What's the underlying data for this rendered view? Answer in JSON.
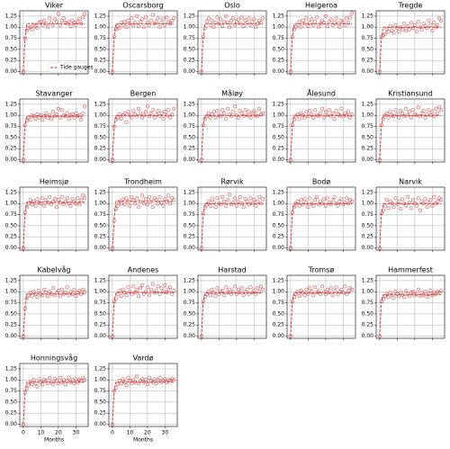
{
  "chart_data": {
    "type": "small-multiples-scatter",
    "color": "#d62728",
    "series_name": "Tide gauges",
    "xlabel": "Months",
    "x": [
      0,
      1,
      2,
      3,
      4,
      5,
      6,
      7,
      8,
      9,
      10,
      11,
      12,
      13,
      14,
      15,
      16,
      17,
      18,
      19,
      20,
      21,
      22,
      23,
      24,
      25,
      26,
      27,
      28,
      29,
      30,
      31,
      32,
      33,
      34,
      35
    ],
    "line_x": [
      0,
      1,
      2,
      35
    ],
    "xlim": [
      -2,
      37
    ],
    "ylim": [
      -0.05,
      1.37
    ],
    "xticks": [
      0,
      10,
      20,
      30
    ],
    "yticks": [
      {
        "value": 0,
        "label": "0.00"
      },
      {
        "value": 0.25,
        "label": "0.25"
      },
      {
        "value": 0.5,
        "label": "0.50"
      },
      {
        "value": 0.75,
        "label": "0.75"
      },
      {
        "value": 1,
        "label": "1.00"
      },
      {
        "value": 1.25,
        "label": "1.25"
      }
    ],
    "grid": true,
    "panels": [
      {
        "title": "Viker",
        "legend": true,
        "legend_loc": "lower right",
        "line": [
          0,
          0.75,
          1.08,
          1.08
        ],
        "values": [
          0,
          0.75,
          0.92,
          0.98,
          1.0,
          0.95,
          1.05,
          1.02,
          0.98,
          1.1,
          1.12,
          1.05,
          1.15,
          1.08,
          1.0,
          1.2,
          1.1,
          1.05,
          1.18,
          1.12,
          1.3,
          1.05,
          1.15,
          1.2,
          1.1,
          1.08,
          1.12,
          1.02,
          1.15,
          1.1,
          1.05,
          1.12,
          1.18,
          1.08,
          1.22,
          1.3
        ]
      },
      {
        "title": "Oscarsborg",
        "line": [
          0,
          0.78,
          1.08,
          1.08
        ],
        "values": [
          0,
          0.78,
          0.95,
          1.02,
          0.98,
          1.1,
          1.05,
          1.12,
          1.0,
          1.15,
          1.08,
          1.2,
          1.05,
          1.1,
          1.25,
          1.02,
          1.12,
          1.18,
          1.0,
          1.22,
          1.1,
          1.05,
          1.15,
          1.28,
          1.08,
          1.12,
          1.2,
          1.0,
          1.1,
          1.18,
          1.05,
          1.22,
          1.12,
          1.08,
          1.15,
          1.2
        ]
      },
      {
        "title": "Oslo",
        "line": [
          0,
          0.78,
          1.08,
          1.08
        ],
        "values": [
          0,
          0.78,
          0.98,
          1.12,
          1.2,
          1.05,
          1.15,
          1.0,
          1.1,
          1.22,
          1.08,
          1.18,
          1.02,
          1.12,
          1.25,
          1.1,
          1.0,
          1.15,
          1.2,
          1.05,
          1.12,
          1.18,
          1.08,
          1.22,
          1.02,
          1.15,
          1.1,
          1.2,
          1.05,
          1.12,
          1.18,
          1.0,
          1.08,
          1.15,
          1.1,
          1.2
        ]
      },
      {
        "title": "Helgeroa",
        "line": [
          0,
          0.78,
          1.08,
          1.08
        ],
        "values": [
          0,
          0.78,
          0.95,
          1.0,
          1.05,
          1.12,
          1.0,
          1.15,
          1.08,
          1.2,
          1.02,
          1.1,
          1.18,
          1.05,
          1.12,
          1.22,
          1.0,
          1.08,
          1.15,
          1.1,
          1.25,
          1.02,
          1.12,
          1.18,
          1.05,
          1.1,
          1.2,
          1.08,
          1.0,
          1.15,
          1.12,
          1.05,
          1.2,
          1.1,
          1.22,
          1.32
        ]
      },
      {
        "title": "Tregde",
        "line": [
          0,
          0.78,
          1.0,
          1.0
        ],
        "values": [
          0,
          0.78,
          0.82,
          0.85,
          0.95,
          0.9,
          1.02,
          0.92,
          0.88,
          1.05,
          0.98,
          0.9,
          1.0,
          0.95,
          1.08,
          0.92,
          1.02,
          0.95,
          1.1,
          0.98,
          1.05,
          0.9,
          1.12,
          1.0,
          0.95,
          1.08,
          1.02,
          0.98,
          1.15,
          1.05,
          0.92,
          1.1,
          1.0,
          1.05,
          1.2,
          1.15
        ]
      },
      {
        "title": "Stavanger",
        "line": [
          0,
          0.78,
          0.98,
          0.98
        ],
        "values": [
          0,
          0.78,
          0.88,
          0.95,
          0.9,
          1.0,
          0.98,
          0.92,
          1.02,
          0.95,
          1.0,
          0.9,
          0.98,
          1.05,
          0.95,
          1.0,
          0.92,
          1.08,
          0.98,
          1.02,
          1.15,
          0.95,
          1.12,
          1.0,
          0.98,
          1.05,
          0.92,
          1.0,
          1.02,
          0.95,
          1.05,
          0.98,
          1.0,
          0.9,
          1.05,
          1.2
        ]
      },
      {
        "title": "Bergen",
        "line": [
          0,
          0.75,
          1.0,
          1.0
        ],
        "values": [
          0,
          0.75,
          0.9,
          0.95,
          1.02,
          0.92,
          1.0,
          1.05,
          0.85,
          1.08,
          1.0,
          0.95,
          1.1,
          1.02,
          0.98,
          1.15,
          1.05,
          0.95,
          1.0,
          1.08,
          1.2,
          0.98,
          1.05,
          1.12,
          0.95,
          1.02,
          1.1,
          0.98,
          1.05,
          0.92,
          1.08,
          1.0,
          1.12,
          0.95,
          1.02,
          1.15
        ]
      },
      {
        "title": "Måløy",
        "line": [
          0,
          0.78,
          1.0,
          1.0
        ],
        "values": [
          0,
          0.78,
          0.92,
          0.98,
          1.05,
          0.95,
          1.02,
          1.08,
          0.95,
          1.1,
          1.0,
          0.98,
          1.12,
          1.05,
          0.92,
          1.15,
          1.02,
          0.98,
          1.08,
          1.2,
          1.0,
          0.95,
          1.1,
          1.05,
          0.98,
          1.12,
          1.0,
          1.08,
          0.95,
          1.05,
          1.1,
          1.0,
          0.98,
          1.15,
          1.02,
          1.05
        ]
      },
      {
        "title": "Ålesund",
        "line": [
          0,
          0.78,
          1.0,
          1.0
        ],
        "values": [
          0,
          0.78,
          0.9,
          0.98,
          1.02,
          0.92,
          1.05,
          1.0,
          0.95,
          1.08,
          0.98,
          1.1,
          1.02,
          0.95,
          1.12,
          1.0,
          0.98,
          1.05,
          1.15,
          0.95,
          1.08,
          1.0,
          1.12,
          0.98,
          1.05,
          0.92,
          1.1,
          1.02,
          1.0,
          1.15,
          0.98,
          1.05,
          1.0,
          1.08,
          0.95,
          1.02
        ]
      },
      {
        "title": "Kristiansund",
        "line": [
          0,
          0.78,
          1.0,
          1.0
        ],
        "values": [
          0,
          0.78,
          0.92,
          1.0,
          1.05,
          0.95,
          1.08,
          1.0,
          0.98,
          1.12,
          1.02,
          0.95,
          1.1,
          1.05,
          0.98,
          1.15,
          1.0,
          1.08,
          0.95,
          1.12,
          1.02,
          1.0,
          1.18,
          0.98,
          1.05,
          1.1,
          0.95,
          1.02,
          1.12,
          1.0,
          1.08,
          0.98,
          1.15,
          1.05,
          1.18,
          1.12
        ]
      },
      {
        "title": "Heimsjø",
        "line": [
          0,
          0.8,
          1.03,
          1.03
        ],
        "values": [
          0,
          0.8,
          0.92,
          1.0,
          1.08,
          0.98,
          1.05,
          0.95,
          1.1,
          1.02,
          1.0,
          1.12,
          0.95,
          1.08,
          1.02,
          1.15,
          0.98,
          1.05,
          1.1,
          0.92,
          1.08,
          1.02,
          1.15,
          0.98,
          1.05,
          1.12,
          1.0,
          0.95,
          1.1,
          1.05,
          1.0,
          1.12,
          0.98,
          1.08,
          1.18,
          1.12
        ]
      },
      {
        "title": "Trondheim",
        "line": [
          0,
          0.62,
          1.05,
          1.05
        ],
        "values": [
          0,
          0.62,
          0.88,
          0.95,
          1.05,
          1.0,
          1.1,
          0.98,
          1.12,
          1.05,
          0.95,
          1.15,
          1.08,
          1.0,
          1.12,
          0.92,
          1.05,
          1.18,
          1.0,
          1.1,
          0.98,
          1.15,
          1.05,
          0.92,
          1.12,
          1.08,
          1.0,
          1.15,
          1.02,
          0.95,
          1.1,
          1.05,
          1.18,
          1.0,
          1.12,
          1.08
        ]
      },
      {
        "title": "Rørvik",
        "line": [
          0,
          0.78,
          1.0,
          1.0
        ],
        "values": [
          0,
          0.78,
          0.9,
          0.98,
          1.05,
          0.95,
          1.1,
          1.02,
          0.92,
          1.12,
          1.0,
          0.98,
          1.15,
          1.05,
          0.95,
          1.08,
          1.2,
          0.98,
          1.02,
          1.12,
          0.95,
          1.05,
          1.15,
          1.0,
          0.92,
          1.1,
          1.05,
          0.98,
          1.12,
          1.0,
          1.08,
          0.95,
          1.05,
          1.15,
          1.0,
          1.1
        ]
      },
      {
        "title": "Bodø",
        "line": [
          0,
          0.8,
          1.0,
          1.0
        ],
        "values": [
          0,
          0.8,
          0.92,
          1.0,
          1.05,
          0.95,
          1.08,
          0.98,
          1.1,
          1.02,
          0.92,
          1.12,
          1.0,
          0.95,
          1.08,
          1.15,
          0.98,
          1.05,
          1.0,
          1.1,
          0.95,
          1.12,
          1.02,
          0.98,
          1.08,
          1.15,
          1.0,
          0.95,
          1.05,
          1.1,
          0.98,
          1.02,
          1.12,
          1.0,
          1.08,
          1.05
        ]
      },
      {
        "title": "Narvik",
        "line": [
          0,
          0.78,
          1.0,
          1.0
        ],
        "values": [
          0,
          0.78,
          0.85,
          0.95,
          1.08,
          0.9,
          1.05,
          1.0,
          0.92,
          1.12,
          0.98,
          1.05,
          0.88,
          1.1,
          1.0,
          0.95,
          1.15,
          1.02,
          0.9,
          1.08,
          1.0,
          0.95,
          1.12,
          0.85,
          1.05,
          1.0,
          1.1,
          0.92,
          1.02,
          1.08,
          0.95,
          1.15,
          1.0,
          1.05,
          1.12,
          1.08
        ]
      },
      {
        "title": "Kabelvåg",
        "line": [
          0,
          0.62,
          0.95,
          0.95
        ],
        "values": [
          0,
          0.62,
          0.85,
          0.92,
          0.98,
          0.9,
          1.0,
          0.95,
          0.88,
          1.02,
          0.95,
          0.92,
          1.05,
          0.98,
          0.9,
          1.0,
          0.95,
          1.08,
          0.92,
          0.98,
          1.02,
          0.9,
          1.05,
          0.95,
          0.98,
          1.1,
          0.92,
          1.0,
          0.95,
          1.05,
          0.9,
          0.98,
          1.02,
          0.95,
          1.05,
          1.0
        ]
      },
      {
        "title": "Andenes",
        "line": [
          0,
          0.78,
          0.98,
          0.98
        ],
        "values": [
          0,
          0.78,
          0.85,
          0.95,
          1.02,
          0.9,
          1.05,
          0.98,
          0.92,
          1.1,
          1.0,
          0.95,
          1.12,
          0.98,
          1.05,
          0.9,
          1.08,
          1.15,
          0.95,
          1.0,
          1.1,
          0.92,
          1.05,
          1.18,
          0.98,
          1.02,
          1.12,
          0.95,
          1.08,
          1.0,
          1.15,
          0.98,
          1.05,
          1.1,
          0.95,
          1.02
        ]
      },
      {
        "title": "Harstad",
        "line": [
          0,
          0.78,
          0.97,
          0.97
        ],
        "values": [
          0,
          0.78,
          0.88,
          0.95,
          1.0,
          0.92,
          1.05,
          0.98,
          0.9,
          1.08,
          0.95,
          1.0,
          1.02,
          0.92,
          1.1,
          0.98,
          1.05,
          0.95,
          1.0,
          1.12,
          0.95,
          1.05,
          0.98,
          1.08,
          0.92,
          1.0,
          1.05,
          0.95,
          1.1,
          0.98,
          1.02,
          0.95,
          1.08,
          1.0,
          1.12,
          1.05
        ]
      },
      {
        "title": "Tromsø",
        "line": [
          0,
          0.78,
          0.97,
          0.97
        ],
        "values": [
          0,
          0.78,
          0.88,
          0.95,
          1.0,
          0.9,
          1.02,
          0.98,
          0.92,
          1.05,
          0.95,
          1.08,
          1.0,
          0.92,
          1.1,
          0.98,
          1.02,
          0.95,
          1.12,
          1.0,
          0.95,
          1.05,
          0.98,
          1.08,
          0.92,
          1.02,
          1.1,
          0.95,
          1.0,
          1.05,
          0.98,
          1.12,
          0.95,
          1.02,
          1.08,
          1.05
        ]
      },
      {
        "title": "Hammerfest",
        "line": [
          0,
          0.78,
          0.93,
          0.93
        ],
        "values": [
          0,
          0.78,
          0.85,
          0.9,
          0.95,
          0.88,
          0.98,
          0.92,
          0.86,
          1.0,
          0.95,
          0.9,
          0.98,
          0.93,
          0.88,
          1.02,
          0.95,
          0.9,
          0.98,
          1.0,
          0.92,
          0.95,
          1.05,
          0.9,
          0.98,
          0.93,
          1.0,
          0.88,
          0.95,
          1.02,
          0.92,
          0.98,
          0.95,
          1.0,
          0.98,
          1.02
        ]
      },
      {
        "title": "Honningsvåg",
        "line": [
          0,
          0.72,
          0.95,
          0.95
        ],
        "values": [
          0,
          0.72,
          0.8,
          0.88,
          0.95,
          0.9,
          1.0,
          0.92,
          0.85,
          1.02,
          0.95,
          0.9,
          1.0,
          0.98,
          0.92,
          1.05,
          0.95,
          0.9,
          1.02,
          0.98,
          0.92,
          1.05,
          0.95,
          1.0,
          0.9,
          0.98,
          1.05,
          0.95,
          1.0,
          0.92,
          1.02,
          0.95,
          1.0,
          0.98,
          1.05,
          1.0
        ]
      },
      {
        "title": "Vardø",
        "line": [
          0,
          0.75,
          0.95,
          0.95
        ],
        "values": [
          0,
          0.75,
          0.82,
          0.9,
          0.98,
          0.92,
          1.02,
          0.95,
          0.88,
          1.05,
          0.98,
          0.92,
          1.0,
          0.95,
          1.08,
          0.92,
          0.98,
          1.02,
          0.95,
          1.0,
          0.9,
          1.05,
          0.98,
          0.95,
          1.02,
          0.92,
          1.0,
          1.05,
          0.95,
          0.98,
          1.02,
          0.95,
          1.0,
          0.98,
          1.02,
          1.0
        ]
      }
    ]
  }
}
